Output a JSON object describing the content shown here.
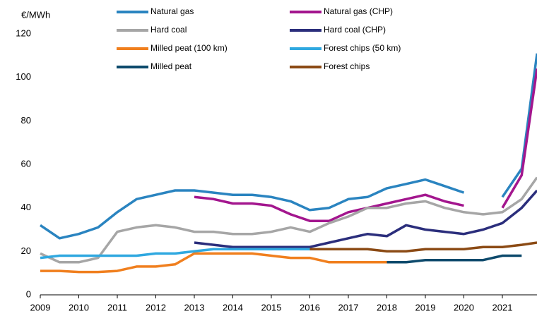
{
  "chart_data": {
    "type": "line",
    "ylabel": "€/MWh",
    "x": [
      2009.0,
      2009.5,
      2010.0,
      2010.5,
      2011.0,
      2011.5,
      2012.0,
      2012.5,
      2013.0,
      2013.5,
      2014.0,
      2014.5,
      2015.0,
      2015.5,
      2016.0,
      2016.5,
      2017.0,
      2017.5,
      2018.0,
      2018.5,
      2019.0,
      2019.5,
      2020.0,
      2020.5,
      2021.0,
      2021.5,
      2021.9
    ],
    "series": [
      {
        "name": "Natural gas",
        "color": "#2a84c0",
        "values": [
          32,
          26,
          28,
          31,
          38,
          44,
          46,
          48,
          48,
          47,
          46,
          46,
          45,
          43,
          39,
          40,
          44,
          45,
          49,
          51,
          53,
          50,
          47,
          null,
          45,
          58,
          111
        ]
      },
      {
        "name": "Natural gas (CHP)",
        "color": "#a3168e",
        "values": [
          null,
          null,
          null,
          null,
          null,
          null,
          null,
          null,
          45,
          44,
          42,
          42,
          41,
          37,
          34,
          34,
          38,
          40,
          42,
          44,
          46,
          43,
          41,
          null,
          40,
          55,
          104
        ]
      },
      {
        "name": "Hard coal",
        "color": "#a6a6a6",
        "values": [
          19,
          15,
          15,
          17,
          29,
          31,
          32,
          31,
          29,
          29,
          28,
          28,
          29,
          31,
          29,
          33,
          36,
          40,
          40,
          42,
          43,
          40,
          38,
          37,
          38,
          44,
          54
        ]
      },
      {
        "name": "Hard coal (CHP)",
        "color": "#2b2e7c",
        "values": [
          null,
          null,
          null,
          null,
          null,
          null,
          null,
          null,
          24,
          23,
          22,
          22,
          22,
          22,
          22,
          24,
          26,
          28,
          27,
          32,
          30,
          29,
          28,
          30,
          33,
          40,
          48
        ]
      },
      {
        "name": "Milled peat (100 km)",
        "color": "#f07f1e",
        "values": [
          11,
          11,
          10.5,
          10.5,
          11,
          13,
          13,
          14,
          19,
          19,
          19,
          19,
          18,
          17,
          17,
          15,
          15,
          15,
          15,
          null,
          null,
          null,
          null,
          null,
          null,
          null,
          null
        ]
      },
      {
        "name": "Forest chips (50 km)",
        "color": "#2fa8e0",
        "values": [
          17,
          18,
          18,
          18,
          18,
          18,
          19,
          19,
          20,
          21,
          21,
          21,
          21,
          21,
          21,
          null,
          null,
          null,
          null,
          null,
          null,
          null,
          null,
          null,
          null,
          null,
          null
        ]
      },
      {
        "name": "Milled peat",
        "color": "#0d4a6c",
        "values": [
          null,
          null,
          null,
          null,
          null,
          null,
          null,
          null,
          null,
          null,
          null,
          null,
          null,
          null,
          null,
          null,
          null,
          null,
          15,
          15,
          16,
          16,
          16,
          16,
          18,
          18,
          null
        ]
      },
      {
        "name": "Forest chips",
        "color": "#8b4a14",
        "values": [
          null,
          null,
          null,
          null,
          null,
          null,
          null,
          null,
          null,
          null,
          null,
          null,
          null,
          null,
          21,
          21,
          21,
          21,
          20,
          20,
          21,
          21,
          21,
          22,
          22,
          23,
          24
        ]
      }
    ],
    "xlim": [
      2009,
      2021.9
    ],
    "xticks": [
      2009,
      2010,
      2011,
      2012,
      2013,
      2014,
      2015,
      2016,
      2017,
      2018,
      2019,
      2020,
      2021
    ],
    "ylim": [
      0,
      120
    ],
    "yticks": [
      0,
      20,
      40,
      60,
      80,
      100,
      120
    ],
    "grid": false
  }
}
